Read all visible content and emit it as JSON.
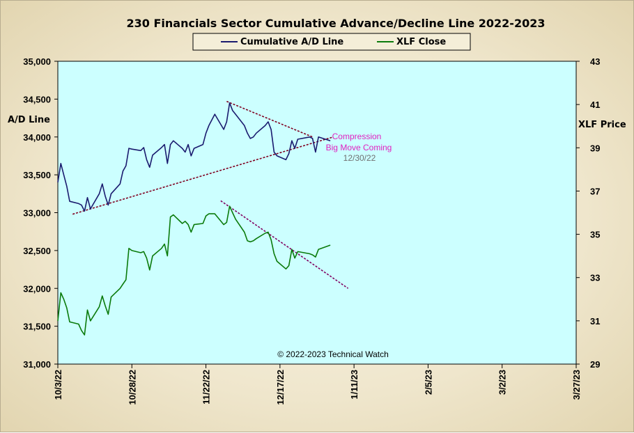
{
  "chart_data": {
    "type": "line",
    "title": "230 Financials  Sector Cumulative  Advance/Decline  Line 2022-2023",
    "legend": {
      "placement": "top-center",
      "entries": [
        {
          "label": "Cumulative A/D Line",
          "color": "#1a1a6e"
        },
        {
          "label": "XLF Close",
          "color": "#0a7a0a"
        }
      ]
    },
    "left_axis": {
      "title": "A/D Line",
      "range": [
        31000,
        35000
      ],
      "ticks": [
        31000,
        31500,
        32000,
        32500,
        33000,
        33500,
        34000,
        34500,
        35000
      ],
      "tick_labels": [
        "31,000",
        "31,500",
        "32,000",
        "32,500",
        "33,000",
        "33,500",
        "34,000",
        "34,500",
        "35,000"
      ]
    },
    "right_axis": {
      "title": "XLF Price",
      "range": [
        29,
        43
      ],
      "ticks": [
        29,
        31,
        33,
        35,
        37,
        39,
        41,
        43
      ],
      "tick_labels": [
        "29",
        "31",
        "33",
        "35",
        "37",
        "39",
        "41",
        "43"
      ]
    },
    "x_axis": {
      "range": [
        "2022-10-03",
        "2023-03-27"
      ],
      "ticks": [
        "2022-10-03",
        "2022-10-28",
        "2022-11-22",
        "2022-12-17",
        "2023-01-11",
        "2023-02-05",
        "2023-03-02",
        "2023-03-27"
      ],
      "tick_labels": [
        "10/3/22",
        "10/28/22",
        "11/22/22",
        "12/17/22",
        "1/11/23",
        "2/5/23",
        "3/2/23",
        "3/27/23"
      ]
    },
    "background_color": "#ccffff",
    "series": [
      {
        "name": "Cumulative A/D Line",
        "axis": "left",
        "color": "#1a1a6e",
        "points": [
          [
            "2022-10-03",
            33400
          ],
          [
            "2022-10-04",
            33650
          ],
          [
            "2022-10-05",
            33500
          ],
          [
            "2022-10-06",
            33350
          ],
          [
            "2022-10-07",
            33150
          ],
          [
            "2022-10-10",
            33120
          ],
          [
            "2022-10-11",
            33100
          ],
          [
            "2022-10-12",
            33020
          ],
          [
            "2022-10-13",
            33200
          ],
          [
            "2022-10-14",
            33050
          ],
          [
            "2022-10-17",
            33250
          ],
          [
            "2022-10-18",
            33380
          ],
          [
            "2022-10-19",
            33220
          ],
          [
            "2022-10-20",
            33100
          ],
          [
            "2022-10-21",
            33250
          ],
          [
            "2022-10-24",
            33380
          ],
          [
            "2022-10-25",
            33550
          ],
          [
            "2022-10-26",
            33620
          ],
          [
            "2022-10-27",
            33850
          ],
          [
            "2022-10-28",
            33840
          ],
          [
            "2022-10-31",
            33820
          ],
          [
            "2022-11-01",
            33860
          ],
          [
            "2022-11-02",
            33700
          ],
          [
            "2022-11-03",
            33600
          ],
          [
            "2022-11-04",
            33760
          ],
          [
            "2022-11-07",
            33860
          ],
          [
            "2022-11-08",
            33900
          ],
          [
            "2022-11-09",
            33650
          ],
          [
            "2022-11-10",
            33900
          ],
          [
            "2022-11-11",
            33950
          ],
          [
            "2022-11-14",
            33850
          ],
          [
            "2022-11-15",
            33800
          ],
          [
            "2022-11-16",
            33900
          ],
          [
            "2022-11-17",
            33750
          ],
          [
            "2022-11-18",
            33850
          ],
          [
            "2022-11-21",
            33900
          ],
          [
            "2022-11-22",
            34050
          ],
          [
            "2022-11-23",
            34150
          ],
          [
            "2022-11-25",
            34300
          ],
          [
            "2022-11-28",
            34100
          ],
          [
            "2022-11-29",
            34200
          ],
          [
            "2022-11-30",
            34450
          ],
          [
            "2022-12-01",
            34350
          ],
          [
            "2022-12-02",
            34300
          ],
          [
            "2022-12-05",
            34150
          ],
          [
            "2022-12-06",
            34050
          ],
          [
            "2022-12-07",
            33980
          ],
          [
            "2022-12-08",
            34000
          ],
          [
            "2022-12-09",
            34050
          ],
          [
            "2022-12-12",
            34150
          ],
          [
            "2022-12-13",
            34200
          ],
          [
            "2022-12-14",
            34100
          ],
          [
            "2022-12-15",
            33800
          ],
          [
            "2022-12-16",
            33750
          ],
          [
            "2022-12-19",
            33700
          ],
          [
            "2022-12-20",
            33780
          ],
          [
            "2022-12-21",
            33950
          ],
          [
            "2022-12-22",
            33850
          ],
          [
            "2022-12-23",
            33970
          ],
          [
            "2022-12-27",
            34000
          ],
          [
            "2022-12-28",
            33980
          ],
          [
            "2022-12-29",
            33800
          ],
          [
            "2022-12-30",
            34000
          ],
          [
            "2023-01-03",
            33950
          ]
        ]
      },
      {
        "name": "XLF Close",
        "axis": "right",
        "color": "#0a7a0a",
        "points": [
          [
            "2022-10-03",
            31.0
          ],
          [
            "2022-10-04",
            32.3
          ],
          [
            "2022-10-05",
            32.0
          ],
          [
            "2022-10-06",
            31.6
          ],
          [
            "2022-10-07",
            30.95
          ],
          [
            "2022-10-10",
            30.85
          ],
          [
            "2022-10-11",
            30.55
          ],
          [
            "2022-10-12",
            30.35
          ],
          [
            "2022-10-13",
            31.5
          ],
          [
            "2022-10-14",
            31.0
          ],
          [
            "2022-10-17",
            31.65
          ],
          [
            "2022-10-18",
            32.15
          ],
          [
            "2022-10-19",
            31.7
          ],
          [
            "2022-10-20",
            31.3
          ],
          [
            "2022-10-21",
            32.1
          ],
          [
            "2022-10-24",
            32.5
          ],
          [
            "2022-10-25",
            32.7
          ],
          [
            "2022-10-26",
            32.9
          ],
          [
            "2022-10-27",
            34.35
          ],
          [
            "2022-10-28",
            34.25
          ],
          [
            "2022-10-31",
            34.15
          ],
          [
            "2022-11-01",
            34.2
          ],
          [
            "2022-11-02",
            33.9
          ],
          [
            "2022-11-03",
            33.35
          ],
          [
            "2022-11-04",
            34.0
          ],
          [
            "2022-11-07",
            34.35
          ],
          [
            "2022-11-08",
            34.55
          ],
          [
            "2022-11-09",
            34.0
          ],
          [
            "2022-11-10",
            35.8
          ],
          [
            "2022-11-11",
            35.9
          ],
          [
            "2022-11-14",
            35.5
          ],
          [
            "2022-11-15",
            35.6
          ],
          [
            "2022-11-16",
            35.45
          ],
          [
            "2022-11-17",
            35.1
          ],
          [
            "2022-11-18",
            35.45
          ],
          [
            "2022-11-21",
            35.5
          ],
          [
            "2022-11-22",
            35.85
          ],
          [
            "2022-11-23",
            35.95
          ],
          [
            "2022-11-25",
            35.95
          ],
          [
            "2022-11-28",
            35.45
          ],
          [
            "2022-11-29",
            35.55
          ],
          [
            "2022-11-30",
            36.3
          ],
          [
            "2022-12-01",
            36.0
          ],
          [
            "2022-12-02",
            35.7
          ],
          [
            "2022-12-05",
            35.1
          ],
          [
            "2022-12-06",
            34.7
          ],
          [
            "2022-12-07",
            34.65
          ],
          [
            "2022-12-08",
            34.7
          ],
          [
            "2022-12-09",
            34.8
          ],
          [
            "2022-12-12",
            35.05
          ],
          [
            "2022-12-13",
            35.1
          ],
          [
            "2022-12-14",
            34.75
          ],
          [
            "2022-12-15",
            34.1
          ],
          [
            "2022-12-16",
            33.75
          ],
          [
            "2022-12-19",
            33.4
          ],
          [
            "2022-12-20",
            33.55
          ],
          [
            "2022-12-21",
            34.3
          ],
          [
            "2022-12-22",
            33.9
          ],
          [
            "2022-12-23",
            34.2
          ],
          [
            "2022-12-27",
            34.1
          ],
          [
            "2022-12-28",
            34.05
          ],
          [
            "2022-12-29",
            33.95
          ],
          [
            "2022-12-30",
            34.3
          ],
          [
            "2023-01-03",
            34.5
          ]
        ]
      }
    ],
    "trend_lines": [
      {
        "axis": "left",
        "color": "#800020",
        "from": [
          "2022-10-08",
          32980
        ],
        "to": [
          "2023-01-04",
          34000
        ]
      },
      {
        "axis": "left",
        "color": "#800020",
        "from": [
          "2022-11-29",
          34470
        ],
        "to": [
          "2022-12-28",
          34000
        ]
      },
      {
        "axis": "right",
        "color": "#800060",
        "from": [
          "2022-11-27",
          36.55
        ],
        "to": [
          "2023-01-09",
          32.5
        ]
      }
    ],
    "annotations": [
      {
        "text": "Compression",
        "style": "pink"
      },
      {
        "text": "Big Move  Coming",
        "style": "pink"
      },
      {
        "text": "12/30/22",
        "style": "gray"
      }
    ],
    "footer": "© 2022-2023  Technical Watch"
  }
}
